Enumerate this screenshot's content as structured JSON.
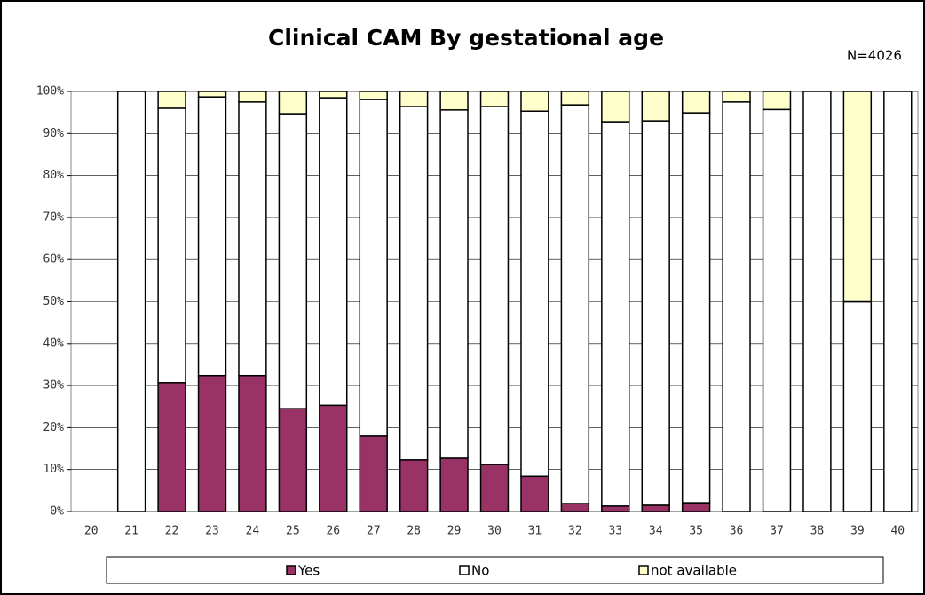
{
  "chart_data": {
    "type": "stacked_bar",
    "title": "Clinical CAM By gestational age",
    "annotation": "N=4026",
    "categories": [
      "20",
      "21",
      "22",
      "23",
      "24",
      "25",
      "26",
      "27",
      "28",
      "29",
      "30",
      "31",
      "32",
      "33",
      "34",
      "35",
      "36",
      "37",
      "38",
      "39",
      "40"
    ],
    "series": [
      {
        "name": "Yes",
        "color": "#993366",
        "values": [
          0,
          0,
          30.7,
          32.4,
          32.4,
          24.5,
          25.3,
          18.0,
          12.3,
          12.7,
          11.2,
          8.4,
          1.9,
          1.3,
          1.5,
          2.1,
          0,
          0,
          0,
          0,
          0
        ]
      },
      {
        "name": "No",
        "color": "#ffffff",
        "values": [
          0,
          100,
          65.3,
          66.3,
          65.1,
          70.2,
          73.2,
          80.1,
          84.1,
          82.9,
          85.2,
          86.9,
          94.9,
          91.5,
          91.5,
          92.8,
          97.5,
          95.7,
          100,
          50,
          100
        ]
      },
      {
        "name": "not available",
        "color": "#ffffcc",
        "values": [
          0,
          0,
          4.0,
          1.3,
          2.5,
          5.3,
          1.5,
          1.9,
          3.6,
          4.4,
          3.6,
          4.7,
          3.2,
          7.2,
          7.0,
          5.1,
          2.5,
          4.3,
          0,
          50,
          0
        ]
      }
    ],
    "ylim": [
      0,
      100
    ],
    "yticks": [
      {
        "value": 0,
        "label": "0%"
      },
      {
        "value": 10,
        "label": "10%"
      },
      {
        "value": 20,
        "label": "20%"
      },
      {
        "value": 30,
        "label": "30%"
      },
      {
        "value": 40,
        "label": "40%"
      },
      {
        "value": 50,
        "label": "50%"
      },
      {
        "value": 60,
        "label": "60%"
      },
      {
        "value": 70,
        "label": "70%"
      },
      {
        "value": 80,
        "label": "80%"
      },
      {
        "value": 90,
        "label": "90%"
      },
      {
        "value": 100,
        "label": "100%"
      }
    ],
    "grid": true,
    "legend": "bottom"
  }
}
